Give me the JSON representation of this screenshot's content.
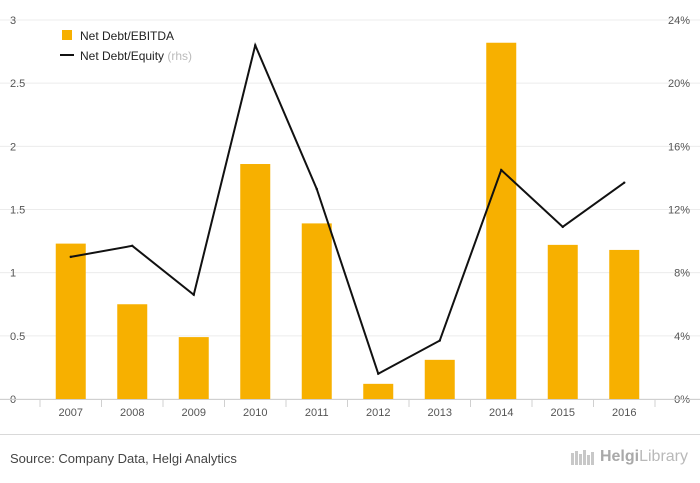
{
  "chart_data": {
    "type": "bar",
    "categories": [
      "2007",
      "2008",
      "2009",
      "2010",
      "2011",
      "2012",
      "2013",
      "2014",
      "2015",
      "2016"
    ],
    "series": [
      {
        "name": "Net Debt/EBITDA",
        "type": "bar",
        "axis": "left",
        "color": "#f7b000",
        "values": [
          1.23,
          0.75,
          0.49,
          1.86,
          1.39,
          0.12,
          0.31,
          2.82,
          1.22,
          1.18
        ]
      },
      {
        "name": "Net Debt/Equity",
        "type": "line",
        "axis": "right",
        "color": "#111111",
        "values": [
          9.0,
          9.7,
          6.6,
          22.4,
          13.3,
          1.6,
          3.7,
          14.5,
          10.9,
          13.7
        ]
      }
    ],
    "legend_note": "(rhs)",
    "y_left": {
      "ticks": [
        "0",
        "0.5",
        "1",
        "1.5",
        "2",
        "2.5",
        "3"
      ],
      "ylim": [
        0,
        3
      ]
    },
    "y_right": {
      "ticks": [
        "0%",
        "4%",
        "8%",
        "12%",
        "16%",
        "20%",
        "24%"
      ],
      "ylim": [
        0,
        24
      ],
      "unit": "%"
    },
    "grid": true,
    "legend_position": "top-left"
  },
  "footer": {
    "source": "Source: Company Data, Helgi Analytics",
    "logo_text_bold": "Helgi",
    "logo_text": "Library"
  },
  "colors": {
    "bar": "#f7b000",
    "line": "#111111",
    "grid": "#ececec"
  }
}
